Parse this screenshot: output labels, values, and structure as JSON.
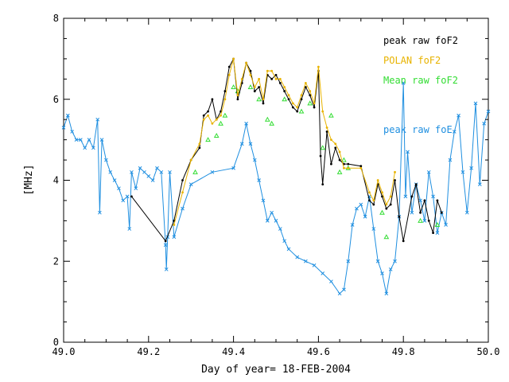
{
  "chart_data": {
    "type": "line",
    "title": "",
    "xlabel": "Day of year= 18-FEB-2004",
    "ylabel": "[MHz]",
    "xlim": [
      49.0,
      50.0
    ],
    "ylim": [
      0,
      8
    ],
    "xticks": [
      49.0,
      49.2,
      49.4,
      49.6,
      49.8,
      50.0
    ],
    "xtick_labels": [
      "49.0",
      "49.2",
      "49.4",
      "49.6",
      "49.8",
      "50.0"
    ],
    "yticks": [
      0,
      2,
      4,
      6,
      8
    ],
    "ytick_labels": [
      "0",
      "2",
      "4",
      "6",
      "8"
    ],
    "grid": false,
    "legend_position": "right",
    "series": [
      {
        "name": "peak raw foF2",
        "color": "#000000",
        "marker": "dot",
        "x": [
          49.16,
          49.24,
          49.26,
          49.28,
          49.3,
          49.32,
          49.33,
          49.34,
          49.35,
          49.36,
          49.37,
          49.38,
          49.39,
          49.4,
          49.41,
          49.42,
          49.43,
          49.44,
          49.45,
          49.46,
          49.47,
          49.48,
          49.49,
          49.5,
          49.51,
          49.52,
          49.53,
          49.54,
          49.55,
          49.56,
          49.57,
          49.58,
          49.59,
          49.6,
          49.605,
          49.61,
          49.62,
          49.63,
          49.64,
          49.65,
          49.66,
          49.67,
          49.7,
          49.72,
          49.73,
          49.74,
          49.75,
          49.76,
          49.77,
          49.78,
          49.79,
          49.8,
          49.82,
          49.83,
          49.84,
          49.85,
          49.86,
          49.87,
          49.88,
          49.89
        ],
        "y": [
          3.6,
          2.5,
          3.0,
          4.0,
          4.5,
          4.8,
          5.6,
          5.7,
          6.0,
          5.5,
          5.7,
          6.2,
          6.8,
          7.0,
          6.0,
          6.4,
          6.9,
          6.7,
          6.2,
          6.3,
          5.9,
          6.6,
          6.5,
          6.6,
          6.4,
          6.2,
          6.0,
          5.8,
          5.7,
          6.0,
          6.3,
          6.1,
          5.8,
          6.7,
          4.6,
          3.9,
          5.2,
          4.4,
          4.8,
          4.5,
          4.4,
          4.4,
          4.35,
          3.5,
          3.4,
          3.9,
          3.6,
          3.3,
          3.4,
          4.0,
          3.1,
          2.5,
          3.6,
          3.9,
          3.2,
          3.5,
          3.0,
          2.7,
          3.5,
          3.2
        ]
      },
      {
        "name": "POLAN foF2",
        "color": "#e8b300",
        "marker": "dot",
        "x": [
          49.26,
          49.28,
          49.3,
          49.32,
          49.33,
          49.34,
          49.35,
          49.36,
          49.37,
          49.38,
          49.39,
          49.4,
          49.41,
          49.42,
          49.43,
          49.44,
          49.45,
          49.46,
          49.47,
          49.48,
          49.49,
          49.5,
          49.51,
          49.52,
          49.53,
          49.54,
          49.55,
          49.56,
          49.57,
          49.58,
          49.59,
          49.6,
          49.61,
          49.62,
          49.63,
          49.64,
          49.65,
          49.66,
          49.67,
          49.7,
          49.72,
          49.73,
          49.74,
          49.75,
          49.76,
          49.77,
          49.78
        ],
        "y": [
          2.9,
          3.7,
          4.5,
          4.9,
          5.5,
          5.6,
          5.4,
          5.5,
          5.6,
          6.0,
          6.6,
          7.0,
          6.1,
          6.5,
          6.9,
          6.6,
          6.3,
          6.5,
          6.0,
          6.7,
          6.7,
          6.5,
          6.5,
          6.3,
          6.1,
          5.9,
          5.8,
          6.1,
          6.4,
          6.2,
          5.9,
          6.8,
          5.7,
          5.3,
          5.0,
          4.9,
          4.7,
          4.3,
          4.3,
          4.3,
          3.7,
          3.5,
          4.0,
          3.7,
          3.4,
          3.6,
          4.2
        ]
      },
      {
        "name": "Mean raw foF2",
        "color": "#33dd33",
        "marker": "triangle",
        "x": [
          49.31,
          49.34,
          49.36,
          49.37,
          49.38,
          49.4,
          49.41,
          49.44,
          49.46,
          49.48,
          49.49,
          49.52,
          49.56,
          49.58,
          49.61,
          49.63,
          49.65,
          49.66,
          49.67,
          49.75,
          49.76,
          49.84,
          49.88
        ],
        "y": [
          4.2,
          5.0,
          5.1,
          5.4,
          5.6,
          6.3,
          6.2,
          6.3,
          6.0,
          5.5,
          5.4,
          6.0,
          5.7,
          5.9,
          4.8,
          5.6,
          4.2,
          4.5,
          4.3,
          3.2,
          2.6,
          3.0,
          2.9
        ]
      },
      {
        "name": "peak raw foE",
        "color": "#1f8fe0",
        "marker": "x",
        "x": [
          49.0,
          49.01,
          49.02,
          49.03,
          49.04,
          49.05,
          49.06,
          49.07,
          49.08,
          49.085,
          49.09,
          49.1,
          49.11,
          49.12,
          49.13,
          49.14,
          49.15,
          49.155,
          49.16,
          49.17,
          49.18,
          49.19,
          49.2,
          49.21,
          49.22,
          49.23,
          49.24,
          49.242,
          49.245,
          49.25,
          49.26,
          49.28,
          49.3,
          49.35,
          49.4,
          49.42,
          49.43,
          49.44,
          49.45,
          49.46,
          49.47,
          49.48,
          49.49,
          49.5,
          49.51,
          49.52,
          49.53,
          49.55,
          49.57,
          49.59,
          49.61,
          49.63,
          49.65,
          49.66,
          49.67,
          49.68,
          49.69,
          49.7,
          49.71,
          49.72,
          49.73,
          49.74,
          49.75,
          49.76,
          49.77,
          49.78,
          49.79,
          49.8,
          49.805,
          49.81,
          49.82,
          49.83,
          49.84,
          49.85,
          49.86,
          49.87,
          49.88,
          49.89,
          49.9,
          49.91,
          49.92,
          49.93,
          49.94,
          49.95,
          49.96,
          49.97,
          49.98,
          49.99,
          50.0
        ],
        "y": [
          5.3,
          5.6,
          5.2,
          5.0,
          5.0,
          4.8,
          5.0,
          4.8,
          5.5,
          3.2,
          5.0,
          4.5,
          4.2,
          4.0,
          3.8,
          3.5,
          3.6,
          2.8,
          4.2,
          3.8,
          4.3,
          4.2,
          4.1,
          4.0,
          4.3,
          4.2,
          2.4,
          1.8,
          2.6,
          4.2,
          2.6,
          3.3,
          3.9,
          4.2,
          4.3,
          4.9,
          5.4,
          4.9,
          4.5,
          4.0,
          3.5,
          3.0,
          3.2,
          3.0,
          2.8,
          2.5,
          2.3,
          2.1,
          2.0,
          1.9,
          1.7,
          1.5,
          1.2,
          1.3,
          2.0,
          2.9,
          3.3,
          3.4,
          3.1,
          3.6,
          2.8,
          2.0,
          1.7,
          1.2,
          1.8,
          2.0,
          3.1,
          6.4,
          3.6,
          4.7,
          3.2,
          3.9,
          3.5,
          3.0,
          4.2,
          3.6,
          2.7,
          3.2,
          2.9,
          4.5,
          5.2,
          5.6,
          4.2,
          3.2,
          4.3,
          5.9,
          3.9,
          5.4,
          5.7
        ]
      }
    ]
  }
}
